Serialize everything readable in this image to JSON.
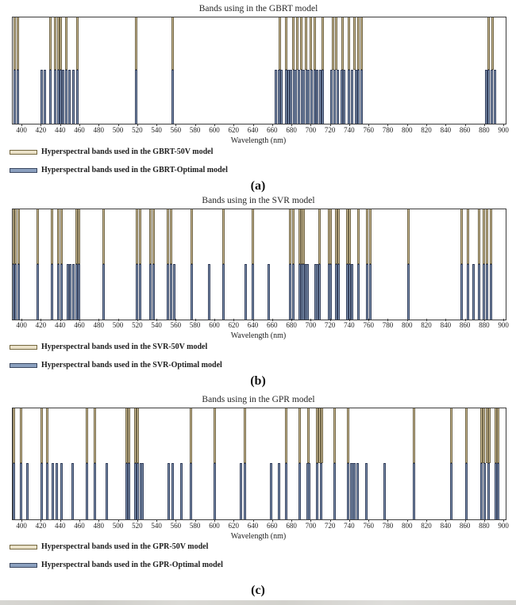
{
  "figure": {
    "xlabel": "Wavelength (nm)",
    "sublabels": [
      "(a)",
      "(b)",
      "(c)"
    ]
  },
  "axis": {
    "label": "Wavelength (nm)",
    "domain_min": 390,
    "domain_max": 901.5,
    "ticks": [
      400,
      420,
      440,
      460,
      480,
      500,
      520,
      540,
      560,
      580,
      600,
      620,
      640,
      660,
      680,
      700,
      720,
      740,
      760,
      780,
      800,
      820,
      840,
      860,
      880,
      900
    ]
  },
  "colors": {
    "bar_50v_fill": "#cdbc94",
    "bar_50v_border": "#6f6548",
    "bar_optimal_fill": "#8398b6",
    "bar_optimal_border": "#35405c",
    "legend_50v_fill": "#eae1c8",
    "legend_optimal_fill": "#8ba0bf",
    "axis_line": "#3d3d3d",
    "text": "#1c1c1c"
  },
  "chart_data": [
    {
      "type": "bar",
      "title": "Bands using in the GBRT model",
      "xlabel": "Wavelength (nm)",
      "x_range": [
        390,
        900
      ],
      "sublabel": "(a)",
      "legend": {
        "item_50v": "Hyperspectral bands used in the GBRT-50V model",
        "item_optimal": "Hyperspectral bands used in the GBRT-Optimal model"
      },
      "series": [
        {
          "name": "GBRT-50V",
          "wavelengths_nm": [
            392,
            395,
            429,
            434,
            437,
            440,
            446,
            457,
            518,
            556,
            667,
            674,
            681,
            685,
            689,
            694,
            699,
            703,
            712,
            722,
            726,
            732,
            739,
            745,
            749,
            752,
            884,
            888
          ]
        },
        {
          "name": "GBRT-Optimal",
          "wavelengths_nm": [
            392,
            395,
            420,
            423,
            429,
            434,
            437,
            440,
            442,
            446,
            449,
            453,
            457,
            518,
            556,
            663,
            666,
            669,
            674,
            676,
            679,
            682,
            684,
            687,
            690,
            692,
            695,
            697,
            700,
            703,
            706,
            709,
            712,
            721,
            724,
            727,
            731,
            734,
            739,
            742,
            746,
            749,
            752,
            881,
            884,
            887,
            890
          ]
        }
      ]
    },
    {
      "type": "bar",
      "title": "Bands using in the SVR model",
      "xlabel": "Wavelength (nm)",
      "x_range": [
        390,
        900
      ],
      "sublabel": "(b)",
      "legend": {
        "item_50v": "Hyperspectral bands used in the SVR-50V model",
        "item_optimal": "Hyperspectral bands used in the SVR-Optimal model"
      },
      "series": [
        {
          "name": "SVR-50V",
          "wavelengths_nm": [
            390,
            393,
            396,
            416,
            431,
            437,
            441,
            456,
            459,
            484,
            519,
            522,
            533,
            536,
            551,
            554,
            576,
            609,
            639,
            678,
            681,
            688,
            690,
            692,
            708,
            718,
            720,
            726,
            728,
            737,
            740,
            749,
            758,
            761,
            801,
            856,
            862,
            874,
            879,
            882,
            886
          ]
        },
        {
          "name": "SVR-Optimal",
          "wavelengths_nm": [
            390,
            393,
            396,
            416,
            431,
            437,
            441,
            447,
            450,
            453,
            456,
            459,
            484,
            519,
            522,
            533,
            536,
            551,
            554,
            558,
            576,
            594,
            609,
            632,
            639,
            656,
            678,
            681,
            688,
            690,
            692,
            694,
            696,
            704,
            706,
            708,
            718,
            720,
            726,
            728,
            737,
            740,
            742,
            749,
            758,
            761,
            801,
            856,
            862,
            868,
            874,
            879,
            882,
            886
          ]
        }
      ]
    },
    {
      "type": "bar",
      "title": "Bands using in the GPR model",
      "xlabel": "Wavelength (nm)",
      "x_range": [
        390,
        900
      ],
      "sublabel": "(c)",
      "legend": {
        "item_50v": "Hyperspectral bands used in the GPR-50V model",
        "item_optimal": "Hyperspectral bands used in the GPR-Optimal model"
      },
      "series": [
        {
          "name": "GPR-50V",
          "wavelengths_nm": [
            391,
            399,
            420,
            426,
            467,
            475,
            508,
            511,
            517,
            520,
            575,
            600,
            631,
            674,
            688,
            697,
            706,
            708,
            711,
            724,
            738,
            806,
            845,
            861,
            876,
            879,
            882,
            885,
            891,
            894
          ]
        },
        {
          "name": "GPR-Optimal",
          "wavelengths_nm": [
            391,
            399,
            405,
            420,
            426,
            432,
            436,
            441,
            452,
            467,
            475,
            488,
            508,
            511,
            517,
            520,
            523,
            525,
            552,
            556,
            565,
            575,
            600,
            627,
            631,
            658,
            666,
            674,
            688,
            696,
            698,
            706,
            710,
            724,
            738,
            741,
            743,
            745,
            748,
            757,
            776,
            806,
            845,
            861,
            876,
            880,
            884,
            891,
            894
          ]
        }
      ]
    }
  ]
}
